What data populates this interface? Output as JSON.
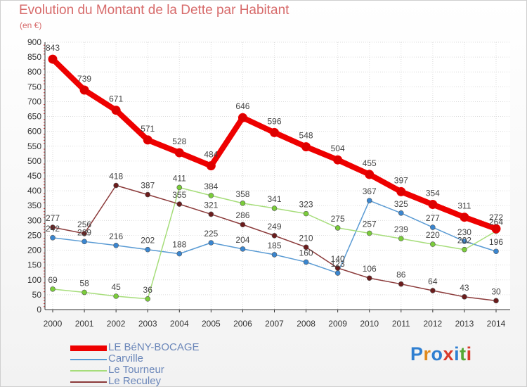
{
  "title": "Evolution du Montant de la Dette par Habitant",
  "subtitle": "(en €)",
  "logo": {
    "text": "Proxiti",
    "colors": [
      "#2f7fd1",
      "#e08a1e",
      "#2f7fd1",
      "#d93a2b",
      "#2f7fd1",
      "#55a834",
      "#d93a2b"
    ]
  },
  "chart_data": {
    "type": "line",
    "title": "Evolution du Montant de la Dette par Habitant",
    "ylabel": "(en €)",
    "xlabel": "",
    "x": [
      "2000",
      "2001",
      "2002",
      "2003",
      "2004",
      "2005",
      "2006",
      "2007",
      "2008",
      "2009",
      "2010",
      "2011",
      "2012",
      "2013",
      "2014"
    ],
    "ylim": [
      0,
      900
    ],
    "yticks": [
      0,
      50,
      100,
      150,
      200,
      250,
      300,
      350,
      400,
      450,
      500,
      550,
      600,
      650,
      700,
      750,
      800,
      850,
      900
    ],
    "grid": true,
    "legend_position": "bottom-left",
    "series": [
      {
        "name": "LE BéNY-BOCAGE",
        "color": "#ee0000",
        "marker_color": "#dd0000",
        "values": [
          843,
          739,
          671,
          571,
          528,
          484,
          646,
          596,
          548,
          504,
          455,
          397,
          354,
          311,
          272
        ]
      },
      {
        "name": "Carville",
        "color": "#5a9bd4",
        "marker_color": "#3a86d0",
        "values": [
          242,
          229,
          216,
          202,
          188,
          225,
          204,
          185,
          160,
          123,
          367,
          325,
          277,
          230,
          196
        ]
      },
      {
        "name": "Le Tourneur",
        "color": "#a6dd7a",
        "marker_color": "#7acc3a",
        "values": [
          69,
          58,
          45,
          36,
          411,
          384,
          358,
          341,
          323,
          275,
          257,
          239,
          220,
          202,
          264
        ]
      },
      {
        "name": "Le Reculey",
        "color": "#8b3a3a",
        "marker_color": "#6b1c1c",
        "values": [
          277,
          256,
          418,
          387,
          355,
          321,
          286,
          249,
          210,
          140,
          106,
          86,
          64,
          43,
          30
        ]
      }
    ]
  }
}
